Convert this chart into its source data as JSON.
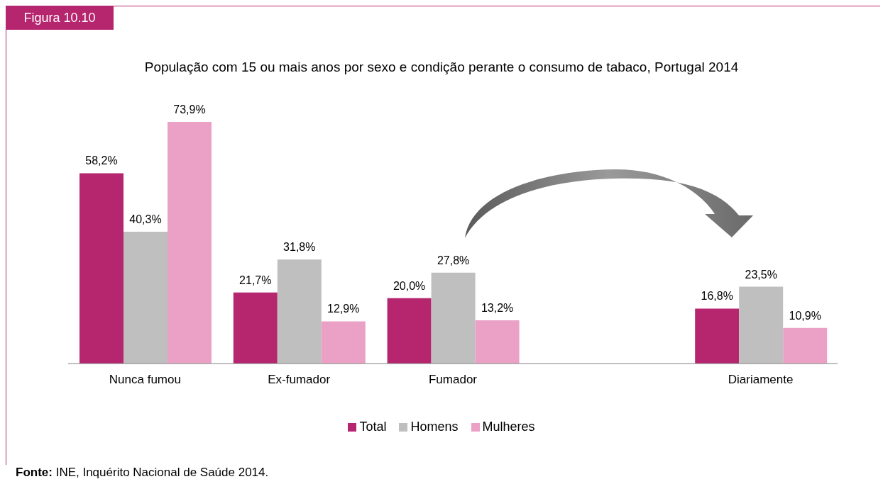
{
  "chart_data": {
    "type": "bar",
    "title": "População com 15 ou mais anos por sexo e condição perante o consumo de tabaco, Portugal 2014",
    "categories": [
      "Nunca fumou",
      "Ex-fumador",
      "Fumador",
      null,
      "Diariamente"
    ],
    "series": [
      {
        "name": "Total",
        "color": "#b5266f",
        "values": [
          58.2,
          21.7,
          20.0,
          null,
          16.8
        ],
        "value_labels": [
          "58,2%",
          "21,7%",
          "20,0%",
          null,
          "16,8%"
        ]
      },
      {
        "name": "Homens",
        "color": "#bfbfbf",
        "values": [
          40.3,
          31.8,
          27.8,
          null,
          23.5
        ],
        "value_labels": [
          "40,3%",
          "31,8%",
          "27,8%",
          null,
          "23,5%"
        ]
      },
      {
        "name": "Mulheres",
        "color": "#eba1c6",
        "values": [
          73.9,
          12.9,
          13.2,
          null,
          10.9
        ],
        "value_labels": [
          "73,9%",
          "12,9%",
          "13,2%",
          null,
          "10,9%"
        ]
      }
    ],
    "legend": "bottom",
    "annotations": [
      "Figura 10.10",
      "Fonte: INE, Inquérito Nacional de Saúde 2014."
    ]
  }
}
